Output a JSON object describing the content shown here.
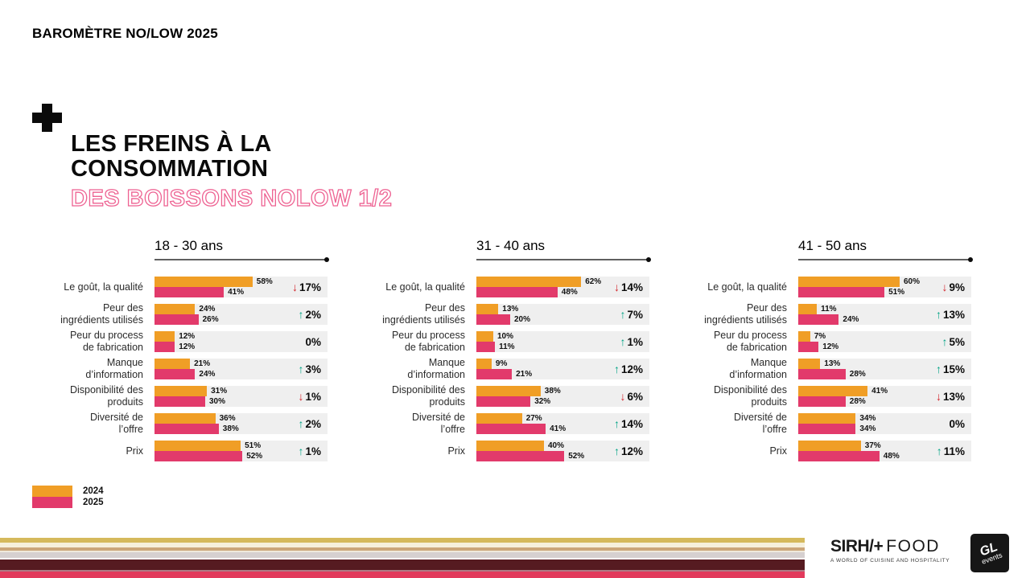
{
  "header": {
    "kicker": "BAROMÈTRE NO/LOW 2025",
    "title_line1": "LES FREINS À LA",
    "title_line2": "CONSOMMATION",
    "subtitle": "DES BOISSONS NOLOW 1/2"
  },
  "legend": {
    "items": [
      {
        "label": "2024",
        "color": "#F09E26"
      },
      {
        "label": "2025",
        "color": "#E23A6B"
      }
    ]
  },
  "colors": {
    "bar_2024": "#F09E26",
    "bar_2025": "#E23A6B",
    "track": "#EFEFEF",
    "up_arrow": "#00A385",
    "down_arrow": "#D2232A",
    "subtitle_pink": "#EE6292"
  },
  "chart_data": {
    "type": "bar",
    "orientation": "horizontal",
    "unit": "%",
    "series_names": [
      "2024",
      "2025"
    ],
    "value_range": [
      0,
      100
    ],
    "panels": [
      {
        "title": "18 - 30 ans",
        "rows": [
          {
            "label": [
              "Le goût, la qualité"
            ],
            "values": [
              58,
              41
            ],
            "change": -17
          },
          {
            "label": [
              "Peur des",
              "ingrédients utilisés"
            ],
            "values": [
              24,
              26
            ],
            "change": 2
          },
          {
            "label": [
              "Peur du process",
              "de fabrication"
            ],
            "values": [
              12,
              12
            ],
            "change": 0
          },
          {
            "label": [
              "Manque",
              "d’information"
            ],
            "values": [
              21,
              24
            ],
            "change": 3
          },
          {
            "label": [
              "Disponibilité des",
              "produits"
            ],
            "values": [
              31,
              30
            ],
            "change": -1
          },
          {
            "label": [
              "Diversité de",
              "l’offre"
            ],
            "values": [
              36,
              38
            ],
            "change": 2
          },
          {
            "label": [
              "Prix"
            ],
            "values": [
              51,
              52
            ],
            "change": 1
          }
        ]
      },
      {
        "title": "31 - 40 ans",
        "rows": [
          {
            "label": [
              "Le goût, la qualité"
            ],
            "values": [
              62,
              48
            ],
            "change": -14
          },
          {
            "label": [
              "Peur des",
              "ingrédients utilisés"
            ],
            "values": [
              13,
              20
            ],
            "change": 7
          },
          {
            "label": [
              "Peur du process",
              "de fabrication"
            ],
            "values": [
              10,
              11
            ],
            "change": 1
          },
          {
            "label": [
              "Manque",
              "d’information"
            ],
            "values": [
              9,
              21
            ],
            "change": 12
          },
          {
            "label": [
              "Disponibilité des",
              "produits"
            ],
            "values": [
              38,
              32
            ],
            "change": -6
          },
          {
            "label": [
              "Diversité de",
              "l’offre"
            ],
            "values": [
              27,
              41
            ],
            "change": 14
          },
          {
            "label": [
              "Prix"
            ],
            "values": [
              40,
              52
            ],
            "change": 12
          }
        ]
      },
      {
        "title": "41 - 50 ans",
        "rows": [
          {
            "label": [
              "Le goût, la qualité"
            ],
            "values": [
              60,
              51
            ],
            "change": -9
          },
          {
            "label": [
              "Peur des",
              "ingrédients utilisés"
            ],
            "values": [
              11,
              24
            ],
            "change": 13
          },
          {
            "label": [
              "Peur du process",
              "de fabrication"
            ],
            "values": [
              7,
              12
            ],
            "change": 5
          },
          {
            "label": [
              "Manque",
              "d’information"
            ],
            "values": [
              13,
              28
            ],
            "change": 15
          },
          {
            "label": [
              "Disponibilité des",
              "produits"
            ],
            "values": [
              41,
              28
            ],
            "change": -13
          },
          {
            "label": [
              "Diversité de",
              "l’offre"
            ],
            "values": [
              34,
              34
            ],
            "change": 0
          },
          {
            "label": [
              "Prix"
            ],
            "values": [
              37,
              48
            ],
            "change": 11
          }
        ]
      }
    ]
  },
  "footer": {
    "brand_primary": "SIRH/+",
    "brand_secondary": "FOOD",
    "tagline": "A WORLD OF CUISINE AND HOSPITALITY",
    "gl_logo_line1": "GL",
    "gl_logo_line2": "events"
  }
}
